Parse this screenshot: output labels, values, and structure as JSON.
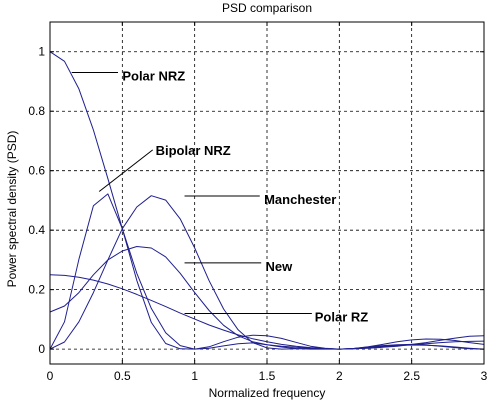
{
  "chart_data": {
    "type": "line",
    "title": "PSD comparison",
    "xlabel": "Normalized frequency",
    "ylabel": "Power spectral density (PSD)",
    "xlim": [
      0,
      3
    ],
    "ylim": [
      -0.05,
      1.1
    ],
    "xticks": [
      0,
      0.5,
      1,
      1.5,
      2,
      2.5,
      3
    ],
    "xtick_labels": [
      "0",
      "0.5",
      "1",
      "1.5",
      "2",
      "2.5",
      "3"
    ],
    "yticks": [
      0,
      0.2,
      0.4,
      0.6,
      0.8,
      1
    ],
    "ytick_labels": [
      "0",
      "0.2",
      "0.4",
      "0.6",
      "0.8",
      "1"
    ],
    "grid": true,
    "line_color": "#1f1f8f",
    "series": [
      {
        "name": "Polar NRZ",
        "x": [
          0,
          0.1,
          0.2,
          0.3,
          0.4,
          0.5,
          0.6,
          0.7,
          0.8,
          0.9,
          1.0,
          1.1,
          1.2,
          1.3,
          1.4,
          1.5,
          1.6,
          1.7,
          1.8,
          1.9,
          2.0,
          2.1,
          2.2,
          2.3,
          2.4,
          2.5,
          2.6,
          2.7,
          2.8,
          2.9,
          3.0
        ],
        "values": [
          1.0,
          0.968,
          0.875,
          0.737,
          0.573,
          0.405,
          0.255,
          0.137,
          0.055,
          0.012,
          0.0,
          0.008,
          0.025,
          0.04,
          0.047,
          0.045,
          0.036,
          0.023,
          0.01,
          0.003,
          0.0,
          0.002,
          0.007,
          0.012,
          0.015,
          0.016,
          0.014,
          0.01,
          0.005,
          0.001,
          0.0
        ]
      },
      {
        "name": "Bipolar NRZ",
        "x": [
          0,
          0.1,
          0.2,
          0.3,
          0.4,
          0.5,
          0.6,
          0.7,
          0.8,
          0.9,
          1.0,
          1.1,
          1.2,
          1.3,
          1.4,
          1.5,
          1.6,
          1.7,
          1.8,
          1.9,
          2.0,
          2.1,
          2.2,
          2.3,
          2.4,
          2.5,
          2.6,
          2.7,
          2.8,
          2.9,
          3.0
        ],
        "values": [
          0.0,
          0.092,
          0.302,
          0.482,
          0.522,
          0.405,
          0.231,
          0.09,
          0.019,
          0.001,
          0.0,
          0.003,
          0.011,
          0.018,
          0.021,
          0.015,
          0.007,
          0.002,
          0.0,
          0.0,
          0.0,
          0.002,
          0.008,
          0.016,
          0.025,
          0.031,
          0.034,
          0.033,
          0.029,
          0.022,
          0.016
        ]
      },
      {
        "name": "Manchester",
        "x": [
          0,
          0.1,
          0.2,
          0.3,
          0.4,
          0.5,
          0.6,
          0.7,
          0.8,
          0.9,
          1.0,
          1.1,
          1.2,
          1.3,
          1.4,
          1.5,
          1.6,
          1.7,
          1.8,
          1.9,
          2.0,
          2.1,
          2.2,
          2.3,
          2.4,
          2.5,
          2.6,
          2.7,
          2.8,
          2.9,
          3.0
        ],
        "values": [
          0.0,
          0.024,
          0.092,
          0.19,
          0.3,
          0.405,
          0.478,
          0.516,
          0.501,
          0.438,
          0.34,
          0.23,
          0.135,
          0.065,
          0.022,
          0.004,
          0.0,
          0.001,
          0.002,
          0.001,
          0.0,
          0.001,
          0.004,
          0.008,
          0.012,
          0.014,
          0.013,
          0.011,
          0.007,
          0.003,
          0.0
        ]
      },
      {
        "name": "New",
        "x": [
          0,
          0.1,
          0.2,
          0.3,
          0.4,
          0.5,
          0.6,
          0.7,
          0.8,
          0.9,
          1.0,
          1.1,
          1.2,
          1.3,
          1.4,
          1.5,
          1.6,
          1.7,
          1.8,
          1.9,
          2.0,
          2.1,
          2.2,
          2.3,
          2.4,
          2.5,
          2.6,
          2.7,
          2.8,
          2.9,
          3.0
        ],
        "values": [
          0.125,
          0.145,
          0.19,
          0.25,
          0.3,
          0.33,
          0.345,
          0.34,
          0.31,
          0.255,
          0.19,
          0.13,
          0.08,
          0.045,
          0.025,
          0.015,
          0.01,
          0.006,
          0.003,
          0.001,
          0.0,
          0.002,
          0.006,
          0.01,
          0.013,
          0.015,
          0.018,
          0.022,
          0.025,
          0.026,
          0.027
        ]
      },
      {
        "name": "Polar RZ",
        "x": [
          0,
          0.1,
          0.2,
          0.3,
          0.4,
          0.5,
          0.6,
          0.7,
          0.8,
          0.9,
          1.0,
          1.1,
          1.2,
          1.3,
          1.4,
          1.5,
          1.6,
          1.7,
          1.8,
          1.9,
          2.0,
          2.1,
          2.2,
          2.3,
          2.4,
          2.5,
          2.6,
          2.7,
          2.8,
          2.9,
          3.0
        ],
        "values": [
          0.25,
          0.248,
          0.242,
          0.232,
          0.219,
          0.203,
          0.184,
          0.164,
          0.143,
          0.121,
          0.101,
          0.081,
          0.064,
          0.048,
          0.035,
          0.025,
          0.016,
          0.01,
          0.005,
          0.002,
          0.0,
          0.001,
          0.003,
          0.006,
          0.01,
          0.016,
          0.022,
          0.03,
          0.037,
          0.043,
          0.045
        ]
      }
    ],
    "annotations": [
      {
        "text": "Polar NRZ",
        "x": 0.5,
        "y": 0.92,
        "lx1": 0.15,
        "ly1": 0.93,
        "lx2": 0.47,
        "ly2": 0.93
      },
      {
        "text": "Bipolar NRZ",
        "x": 0.73,
        "y": 0.67,
        "lx1": 0.34,
        "ly1": 0.53,
        "lx2": 0.71,
        "ly2": 0.67
      },
      {
        "text": "Manchester",
        "x": 1.48,
        "y": 0.505,
        "lx1": 0.93,
        "ly1": 0.515,
        "lx2": 1.45,
        "ly2": 0.515
      },
      {
        "text": "New",
        "x": 1.49,
        "y": 0.28,
        "lx1": 0.93,
        "ly1": 0.29,
        "lx2": 1.46,
        "ly2": 0.29
      },
      {
        "text": "Polar RZ",
        "x": 1.83,
        "y": 0.11,
        "lx1": 0.93,
        "ly1": 0.12,
        "lx2": 1.81,
        "ly2": 0.12
      }
    ]
  }
}
